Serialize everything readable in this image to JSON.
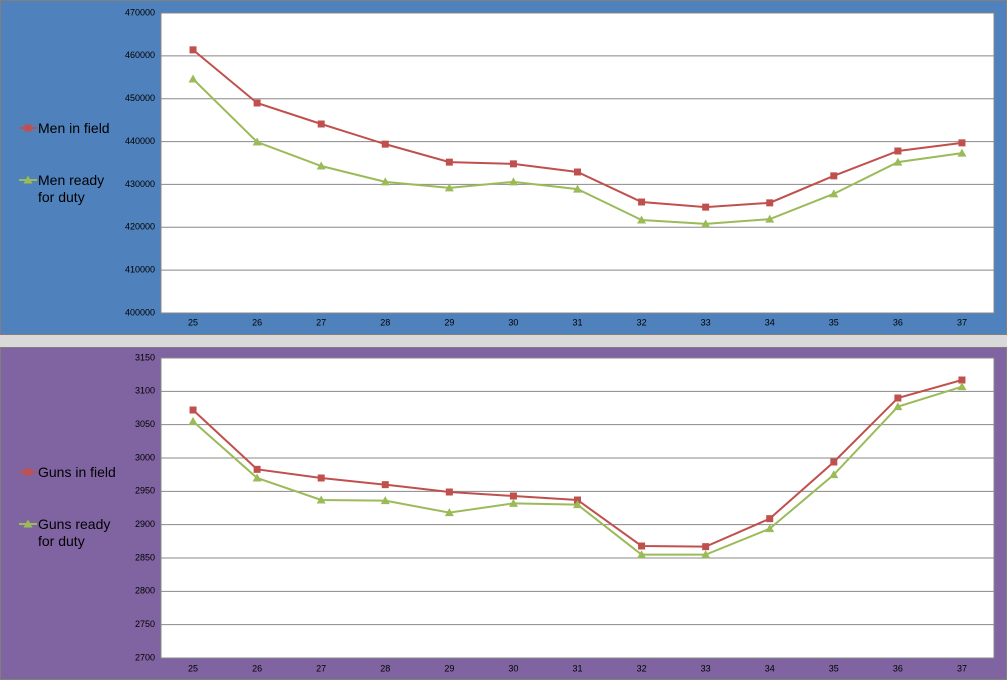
{
  "chart_data": [
    {
      "type": "line",
      "categories": [
        "25",
        "26",
        "27",
        "28",
        "29",
        "30",
        "31",
        "32",
        "33",
        "34",
        "35",
        "36",
        "37"
      ],
      "series": [
        {
          "name": "Men in field",
          "color": "#c0504d",
          "marker": "square",
          "values": [
            461400,
            449000,
            444100,
            439400,
            435200,
            434800,
            432900,
            425900,
            424700,
            425700,
            432000,
            437800,
            439700
          ]
        },
        {
          "name": "Men ready for duty",
          "color": "#9bbb59",
          "marker": "triangle",
          "values": [
            454600,
            439900,
            434300,
            430600,
            429200,
            430600,
            428900,
            421700,
            420800,
            421900,
            427800,
            435200,
            437300
          ]
        }
      ],
      "ylim": [
        400000,
        470000
      ],
      "yticks": [
        400000,
        410000,
        420000,
        430000,
        440000,
        450000,
        460000,
        470000
      ],
      "grid": true,
      "legend": "left"
    },
    {
      "type": "line",
      "categories": [
        "25",
        "26",
        "27",
        "28",
        "29",
        "30",
        "31",
        "32",
        "33",
        "34",
        "35",
        "36",
        "37"
      ],
      "series": [
        {
          "name": "Guns in field",
          "color": "#c0504d",
          "marker": "square",
          "values": [
            3072,
            2983,
            2970,
            2960,
            2949,
            2943,
            2937,
            2868,
            2867,
            2909,
            2994,
            3090,
            3117
          ]
        },
        {
          "name": "Guns ready for duty",
          "color": "#9bbb59",
          "marker": "triangle",
          "values": [
            3055,
            2970,
            2937,
            2936,
            2918,
            2932,
            2930,
            2855,
            2855,
            2894,
            2975,
            3077,
            3107
          ]
        }
      ],
      "ylim": [
        2700,
        3150
      ],
      "yticks": [
        2700,
        2750,
        2800,
        2850,
        2900,
        2950,
        3000,
        3050,
        3100,
        3150
      ],
      "grid": true,
      "legend": "left"
    }
  ]
}
